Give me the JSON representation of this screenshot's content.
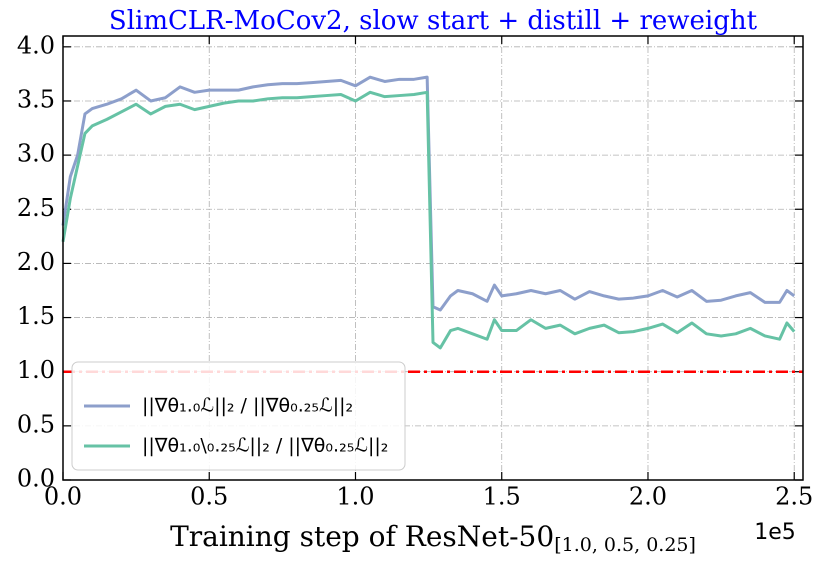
{
  "chart_data": {
    "type": "line",
    "title": "SlimCLR-MoCov2, slow start + distill + reweight",
    "title_color": "#0000ff",
    "x_label": "Training step of ResNet-50",
    "x_label_subscript": "[1.0, 0.5, 0.25]",
    "x_offset_label": "1e5",
    "x": [
      0,
      0.025,
      0.05,
      0.075,
      0.1,
      0.15,
      0.2,
      0.25,
      0.3,
      0.35,
      0.4,
      0.45,
      0.5,
      0.55,
      0.6,
      0.65,
      0.7,
      0.75,
      0.8,
      0.85,
      0.9,
      0.95,
      1.0,
      1.05,
      1.1,
      1.15,
      1.2,
      1.245,
      1.265,
      1.29,
      1.325,
      1.35,
      1.4,
      1.45,
      1.475,
      1.5,
      1.55,
      1.6,
      1.65,
      1.7,
      1.75,
      1.8,
      1.85,
      1.9,
      1.95,
      2.0,
      2.05,
      2.1,
      2.15,
      2.2,
      2.25,
      2.3,
      2.35,
      2.4,
      2.45,
      2.475,
      2.5
    ],
    "series": [
      {
        "name": "||∇θ₁.₀ℒ||₂ / ||∇θ₀.₂₅ℒ||₂",
        "color": "#8d9fcb",
        "values": [
          2.35,
          2.8,
          3.0,
          3.38,
          3.43,
          3.47,
          3.52,
          3.6,
          3.5,
          3.53,
          3.63,
          3.58,
          3.6,
          3.6,
          3.6,
          3.63,
          3.65,
          3.66,
          3.66,
          3.67,
          3.68,
          3.69,
          3.64,
          3.72,
          3.68,
          3.7,
          3.7,
          3.72,
          1.6,
          1.57,
          1.7,
          1.75,
          1.72,
          1.65,
          1.8,
          1.7,
          1.72,
          1.75,
          1.72,
          1.75,
          1.67,
          1.74,
          1.7,
          1.67,
          1.68,
          1.7,
          1.75,
          1.69,
          1.75,
          1.65,
          1.66,
          1.7,
          1.73,
          1.64,
          1.64,
          1.75,
          1.7
        ]
      },
      {
        "name": "||∇θ₁.₀\\₀.₂₅ℒ||₂ / ||∇θ₀.₂₅ℒ||₂",
        "color": "#66c2a5",
        "values": [
          2.2,
          2.6,
          2.9,
          3.2,
          3.27,
          3.33,
          3.4,
          3.47,
          3.38,
          3.45,
          3.47,
          3.42,
          3.45,
          3.48,
          3.5,
          3.5,
          3.52,
          3.53,
          3.53,
          3.54,
          3.55,
          3.56,
          3.5,
          3.58,
          3.54,
          3.55,
          3.56,
          3.58,
          1.27,
          1.22,
          1.38,
          1.4,
          1.35,
          1.3,
          1.48,
          1.38,
          1.38,
          1.48,
          1.4,
          1.43,
          1.35,
          1.4,
          1.43,
          1.36,
          1.37,
          1.4,
          1.44,
          1.36,
          1.45,
          1.35,
          1.33,
          1.35,
          1.4,
          1.33,
          1.3,
          1.45,
          1.37
        ]
      }
    ],
    "hline": {
      "value": 1.0,
      "color": "#ff0000"
    },
    "xlim": [
      0,
      2.53
    ],
    "ylim": [
      0,
      4.1
    ],
    "xticks": [
      {
        "value": 0,
        "label": "0.0"
      },
      {
        "value": 0.5,
        "label": "0.5"
      },
      {
        "value": 1,
        "label": "1.0"
      },
      {
        "value": 1.5,
        "label": "1.5"
      },
      {
        "value": 2,
        "label": "2.0"
      },
      {
        "value": 2.5,
        "label": "2.5"
      }
    ],
    "yticks": [
      {
        "value": 0,
        "label": "0.0"
      },
      {
        "value": 0.5,
        "label": "0.5"
      },
      {
        "value": 1,
        "label": "1.0"
      },
      {
        "value": 1.5,
        "label": "1.5"
      },
      {
        "value": 2,
        "label": "2.0"
      },
      {
        "value": 2.5,
        "label": "2.5"
      },
      {
        "value": 3,
        "label": "3.0"
      },
      {
        "value": 3.5,
        "label": "3.5"
      },
      {
        "value": 4,
        "label": "4.0"
      }
    ],
    "grid": true,
    "legend": "lower left"
  }
}
